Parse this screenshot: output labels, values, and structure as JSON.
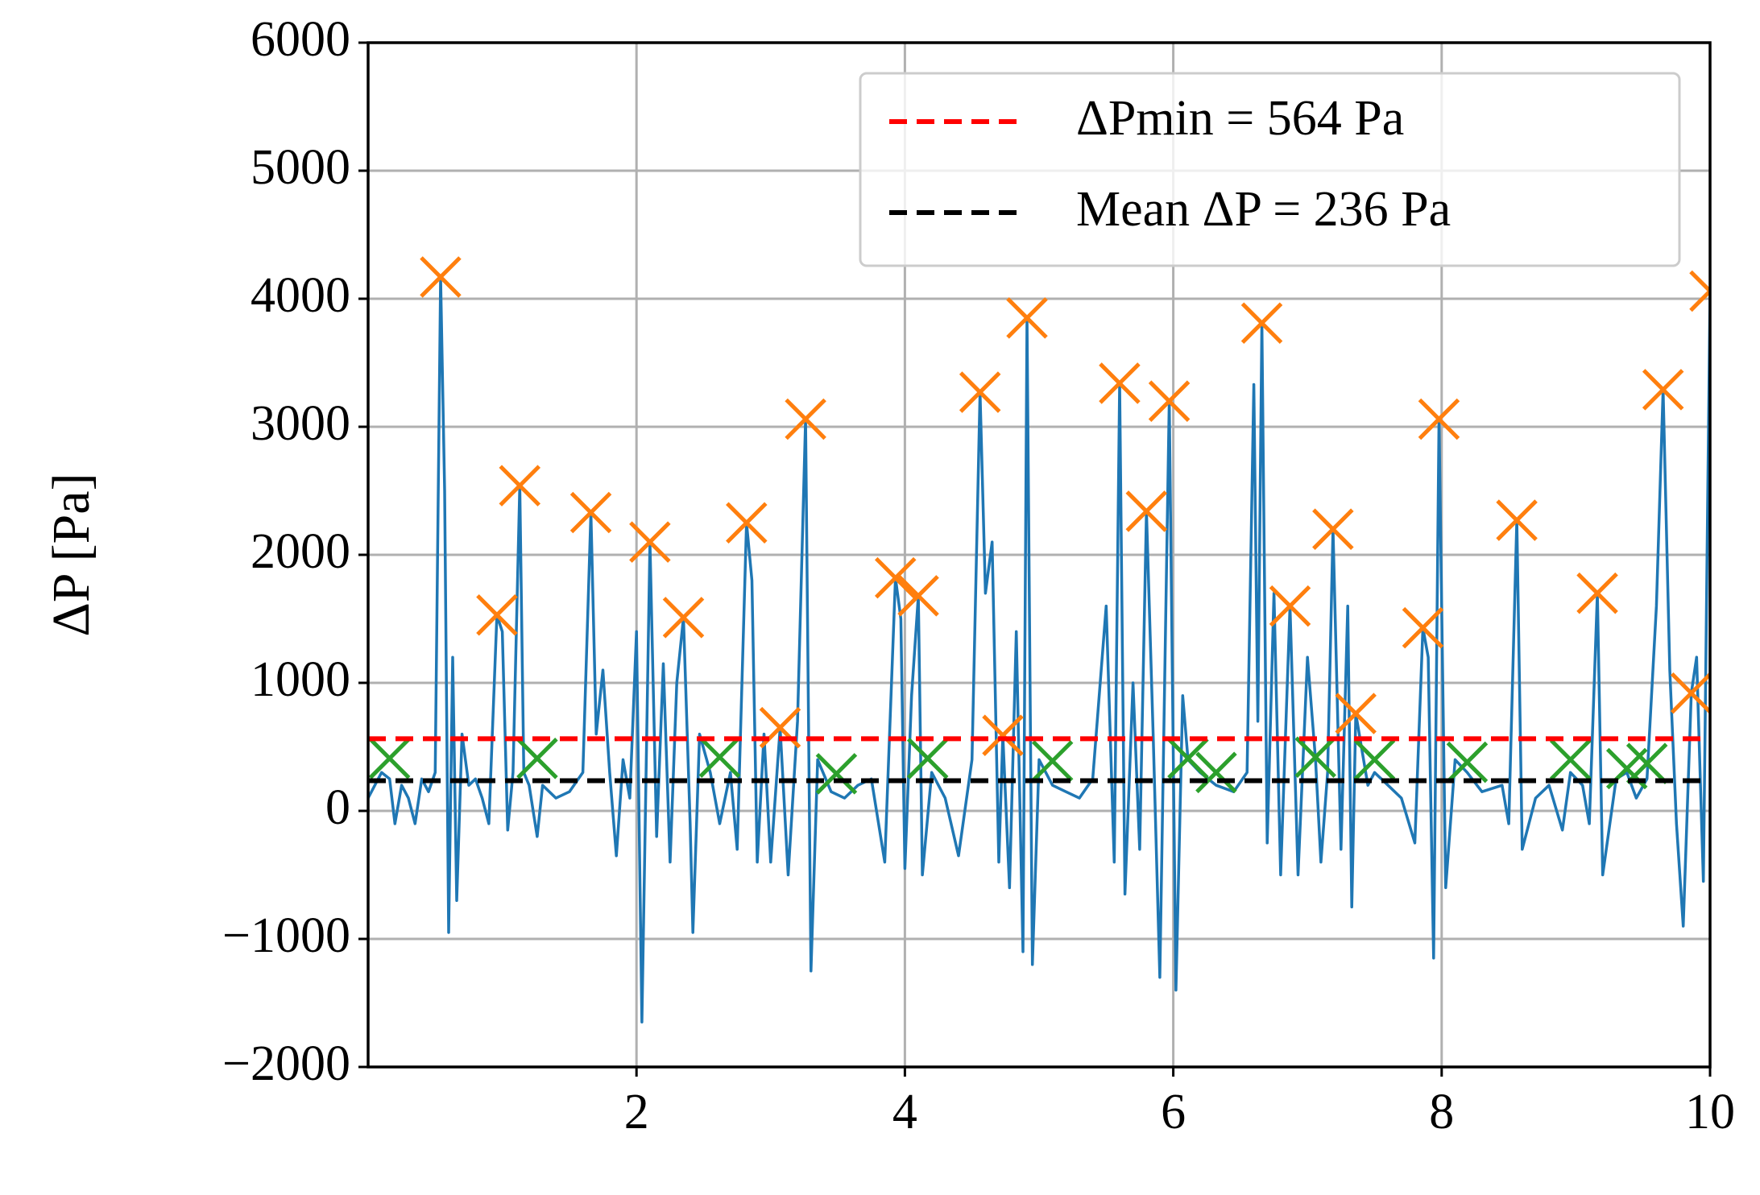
{
  "chart_data": {
    "type": "line",
    "ylabel": "ΔP [Pa]",
    "xlim": [
      0,
      10
    ],
    "xticks": [
      2,
      4,
      6,
      8,
      10
    ],
    "ylim": [
      -2000,
      6000
    ],
    "yticks": [
      {
        "value": -2000,
        "label": "−2000"
      },
      {
        "value": -1000,
        "label": "−1000"
      },
      0,
      1000,
      2000,
      3000,
      4000,
      5000,
      6000
    ],
    "grid": true,
    "legend": "upper right",
    "series": [
      {
        "type": "line",
        "color": "#1f77b4",
        "x": [
          0,
          0.1,
          0.16,
          0.2,
          0.25,
          0.3,
          0.35,
          0.4,
          0.45,
          0.5,
          0.54,
          0.57,
          0.6,
          0.63,
          0.66,
          0.7,
          0.75,
          0.8,
          0.85,
          0.9,
          0.96,
          1.0,
          1.04,
          1.08,
          1.13,
          1.16,
          1.2,
          1.26,
          1.3,
          1.4,
          1.5,
          1.6,
          1.66,
          1.7,
          1.75,
          1.8,
          1.85,
          1.9,
          1.95,
          2.0,
          2.04,
          2.1,
          2.15,
          2.2,
          2.25,
          2.3,
          2.35,
          2.4,
          2.42,
          2.47,
          2.55,
          2.62,
          2.7,
          2.75,
          2.82,
          2.86,
          2.9,
          2.95,
          3.0,
          3.07,
          3.13,
          3.2,
          3.26,
          3.3,
          3.35,
          3.45,
          3.55,
          3.65,
          3.75,
          3.85,
          3.93,
          3.97,
          4.0,
          4.05,
          4.1,
          4.13,
          4.2,
          4.3,
          4.4,
          4.5,
          4.56,
          4.6,
          4.65,
          4.7,
          4.73,
          4.78,
          4.83,
          4.88,
          4.91,
          4.95,
          5.0,
          5.1,
          5.2,
          5.3,
          5.4,
          5.5,
          5.56,
          5.6,
          5.64,
          5.7,
          5.75,
          5.8,
          5.85,
          5.9,
          5.97,
          6.02,
          6.07,
          6.11,
          6.2,
          6.32,
          6.45,
          6.55,
          6.6,
          6.63,
          6.66,
          6.7,
          6.75,
          6.8,
          6.87,
          6.93,
          7.0,
          7.06,
          7.1,
          7.15,
          7.19,
          7.25,
          7.3,
          7.33,
          7.36,
          7.45,
          7.5,
          7.6,
          7.7,
          7.8,
          7.86,
          7.9,
          7.94,
          7.98,
          8.03,
          8.1,
          8.19,
          8.3,
          8.45,
          8.5,
          8.56,
          8.6,
          8.7,
          8.8,
          8.9,
          8.96,
          9.05,
          9.1,
          9.16,
          9.2,
          9.3,
          9.38,
          9.45,
          9.53,
          9.6,
          9.65,
          9.7,
          9.75,
          9.8,
          9.86,
          9.9,
          9.95,
          10.0
        ],
        "values": [
          100,
          300,
          250,
          -100,
          200,
          100,
          -100,
          250,
          150,
          300,
          4170,
          2500,
          -950,
          1200,
          -700,
          600,
          200,
          250,
          100,
          -100,
          1530,
          1400,
          -150,
          300,
          2540,
          300,
          200,
          -200,
          200,
          100,
          150,
          300,
          2330,
          600,
          1100,
          300,
          -350,
          400,
          100,
          1400,
          -1650,
          2100,
          -200,
          1150,
          -400,
          1000,
          1510,
          -100,
          -950,
          600,
          300,
          -100,
          300,
          -300,
          2250,
          1800,
          -400,
          600,
          -400,
          650,
          -500,
          700,
          3060,
          -1250,
          400,
          150,
          100,
          200,
          250,
          -400,
          1820,
          1500,
          -450,
          900,
          1680,
          -500,
          300,
          100,
          -350,
          400,
          3270,
          1700,
          2100,
          -400,
          590,
          -600,
          1400,
          -1100,
          3850,
          -1200,
          400,
          200,
          150,
          100,
          250,
          1600,
          -400,
          3340,
          -650,
          1000,
          -300,
          2340,
          600,
          -1300,
          3200,
          -1400,
          900,
          400,
          300,
          200,
          150,
          300,
          3330,
          700,
          3810,
          -250,
          1700,
          -500,
          1600,
          -500,
          1200,
          400,
          -400,
          300,
          2200,
          -300,
          1600,
          -750,
          760,
          200,
          300,
          200,
          100,
          -250,
          1430,
          1200,
          -1150,
          3060,
          -600,
          400,
          300,
          150,
          200,
          -100,
          2270,
          -300,
          100,
          200,
          -150,
          300,
          200,
          -100,
          1700,
          -500,
          250,
          300,
          100,
          250,
          1600,
          3290,
          1100,
          -100,
          -900,
          920,
          1200,
          -550,
          4060
        ]
      },
      {
        "type": "scatter",
        "marker": "x",
        "color": "#ff7f0e",
        "x": [
          0.54,
          0.96,
          1.13,
          1.66,
          2.1,
          2.35,
          2.82,
          3.07,
          3.26,
          3.93,
          4.1,
          4.56,
          4.73,
          4.91,
          5.6,
          5.8,
          5.97,
          6.66,
          6.87,
          7.19,
          7.36,
          7.86,
          7.98,
          8.56,
          9.16,
          9.65,
          9.86,
          10.0
        ],
        "values": [
          4170,
          1530,
          2540,
          2330,
          2100,
          1510,
          2250,
          650,
          3060,
          1820,
          1680,
          3270,
          590,
          3850,
          3340,
          2340,
          3200,
          3810,
          1600,
          2200,
          760,
          1430,
          3060,
          2270,
          1700,
          3290,
          920,
          4060
        ]
      },
      {
        "type": "scatter",
        "marker": "x",
        "color": "#2ca02c",
        "x": [
          0.16,
          1.26,
          2.62,
          3.49,
          4.17,
          5.1,
          6.11,
          6.32,
          7.06,
          7.5,
          8.19,
          8.96,
          9.38,
          9.53
        ],
        "values": [
          410,
          410,
          420,
          290,
          410,
          390,
          410,
          300,
          420,
          400,
          380,
          400,
          330,
          370
        ]
      }
    ],
    "hlines": [
      {
        "name": "ΔPmin = 564 Pa",
        "color": "#ff0000",
        "value": 564,
        "style": "dashed"
      },
      {
        "name": "Mean ΔP = 236 Pa",
        "color": "#000000",
        "value": 236,
        "style": "dashed"
      }
    ]
  }
}
